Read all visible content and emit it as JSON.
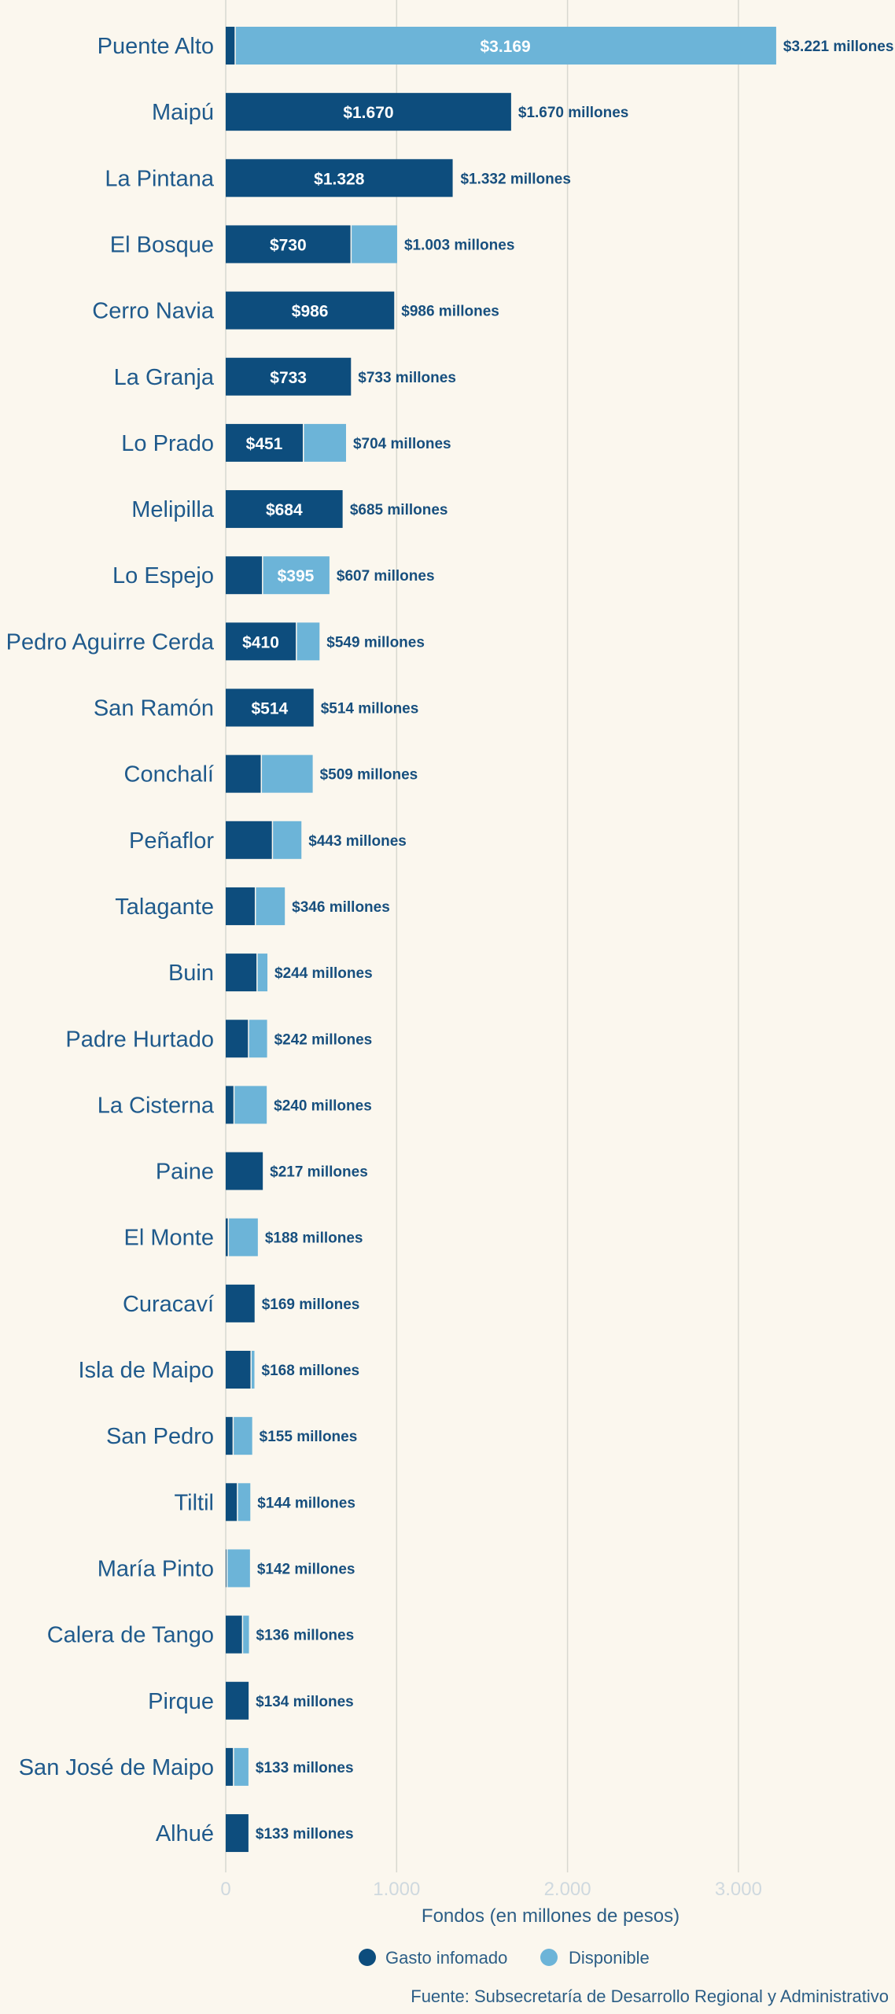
{
  "colors": {
    "spent": "#0d4d7d",
    "available": "#6cb4d8",
    "grid": "#d8d8d0",
    "background": "#fbf7ee"
  },
  "legend": {
    "spent_label": "Gasto infomado",
    "available_label": "Disponible"
  },
  "source": "Fuente: Subsecretaría de Desarrollo Regional y Administrativo",
  "chart_data": {
    "type": "bar",
    "orientation": "horizontal",
    "stacked": true,
    "xlabel": "Fondos (en millones de pesos)",
    "xlim": [
      0,
      3221
    ],
    "xticks": [
      0,
      1000,
      2000,
      3000
    ],
    "xtick_labels": [
      "0",
      "1.000",
      "2.000",
      "3.000"
    ],
    "grid": true,
    "legend_position": "bottom",
    "categories": [
      "Puente Alto",
      "Maipú",
      "La Pintana",
      "El Bosque",
      "Cerro Navia",
      "La Granja",
      "Lo Prado",
      "Melipilla",
      "Lo Espejo",
      "Pedro Aguirre Cerda",
      "San Ramón",
      "Conchalí",
      "Peñaflor",
      "Talagante",
      "Buin",
      "Padre Hurtado",
      "La Cisterna",
      "Paine",
      "El Monte",
      "Curacaví",
      "Isla de Maipo",
      "San Pedro",
      "Tiltil",
      "María Pinto",
      "Calera de Tango",
      "Pirque",
      "San José de Maipo",
      "Alhué"
    ],
    "series": [
      {
        "name": "Gasto infomado",
        "values": [
          52,
          1670,
          1328,
          730,
          986,
          733,
          451,
          684,
          212,
          410,
          514,
          205,
          270,
          170,
          180,
          130,
          45,
          217,
          12,
          169,
          145,
          40,
          65,
          4,
          95,
          134,
          42,
          133
        ]
      },
      {
        "name": "Disponible",
        "values": [
          3169,
          0,
          4,
          273,
          0,
          0,
          253,
          1,
          395,
          139,
          0,
          304,
          173,
          176,
          64,
          112,
          195,
          0,
          176,
          0,
          23,
          115,
          79,
          138,
          41,
          0,
          91,
          0
        ]
      }
    ],
    "inbar_labels": [
      "$3.169",
      "$1.670",
      "$1.328",
      "$730",
      "$986",
      "$733",
      "$451",
      "$684",
      "$395",
      "$410",
      "$514"
    ],
    "inbar_series": [
      "Disponible",
      "Gasto infomado",
      "Gasto infomado",
      "Gasto infomado",
      "Gasto infomado",
      "Gasto infomado",
      "Gasto infomado",
      "Gasto infomado",
      "Disponible",
      "Gasto infomado",
      "Gasto infomado"
    ],
    "total_labels": [
      "$3.221 millones",
      "$1.670 millones",
      "$1.332 millones",
      "$1.003 millones",
      "$986 millones",
      "$733 millones",
      "$704 millones",
      "$685 millones",
      "$607 millones",
      "$549 millones",
      "$514 millones",
      "$509 millones",
      "$443 millones",
      "$346 millones",
      "$244 millones",
      "$242 millones",
      "$240 millones",
      "$217 millones",
      "$188 millones",
      "$169 millones",
      "$168 millones",
      "$155 millones",
      "$144 millones",
      "$142 millones",
      "$136 millones",
      "$134 millones",
      "$133 millones",
      "$133 millones"
    ]
  }
}
